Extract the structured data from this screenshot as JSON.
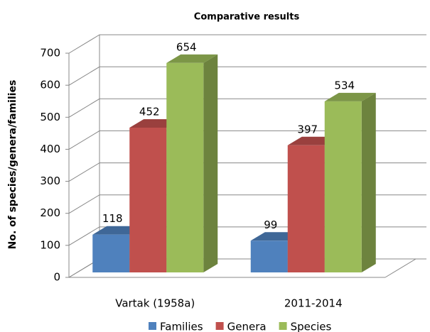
{
  "chart_data": {
    "type": "bar3d",
    "title": "Comparative results",
    "y_label": "No. of species/genera/families",
    "categories": [
      "Vartak (1958a)",
      "2011-2014"
    ],
    "series": [
      {
        "name": "Families",
        "color": "#4f81bd",
        "values": [
          118,
          99
        ]
      },
      {
        "name": "Genera",
        "color": "#c0504d",
        "values": [
          452,
          397
        ]
      },
      {
        "name": "Species",
        "color": "#9bbb59",
        "values": [
          654,
          534
        ]
      }
    ],
    "ylim": [
      0,
      700
    ],
    "yticks": [
      0,
      100,
      200,
      300,
      400,
      500,
      600,
      700
    ],
    "grid": true,
    "legend": "bottom"
  }
}
